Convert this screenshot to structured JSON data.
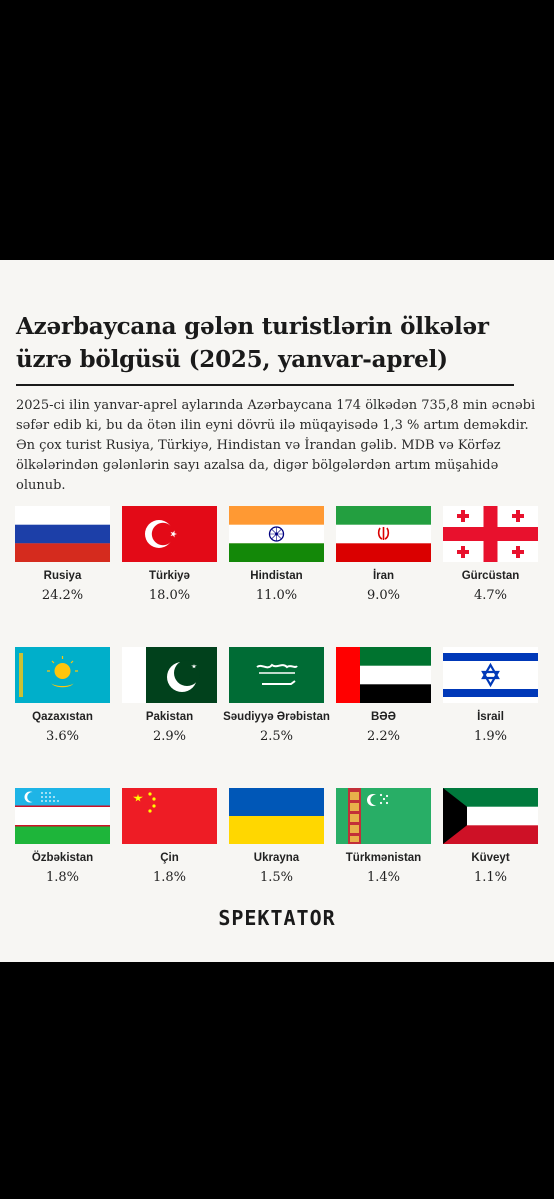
{
  "title": "Azərbaycana gələn turistlərin ölkələr üzrə bölgüsü (2025, yanvar-aprel)",
  "intro": "2025-ci ilin yanvar-aprel aylarında Azərbaycana 174 ölkədən 735,8 min əcnəbi səfər edib ki, bu da ötən ilin eyni dövrü ilə müqayisədə 1,3 % artım deməkdir. Ən çox turist Rusiya, Türkiyə, Hindistan və İrandan gəlib. MDB və Körfəz ölkələrindən gələnlərin sayı azalsa da, digər bölgələrdən artım müşahidə olunub.",
  "brand": "SPEKTATOR",
  "chart_data": {
    "type": "table",
    "title": "Azərbaycana gələn turistlərin ölkələr üzrə bölgüsü (2025, yanvar-aprel)",
    "categories": [
      "Rusiya",
      "Türkiyə",
      "Hindistan",
      "İran",
      "Gürcüstan",
      "Qazaxıstan",
      "Pakistan",
      "Səudiyyə Ərəbistan",
      "BƏƏ",
      "İsrail",
      "Özbəkistan",
      "Çin",
      "Ukrayna",
      "Türkmənistan",
      "Küveyt"
    ],
    "values": [
      24.2,
      18.0,
      11.0,
      9.0,
      4.7,
      3.6,
      2.9,
      2.5,
      2.2,
      1.9,
      1.8,
      1.8,
      1.5,
      1.4,
      1.1
    ],
    "labels": [
      "24.2%",
      "18.0%",
      "11.0%",
      "9.0%",
      "4.7%",
      "3.6%",
      "2.9%",
      "2.5%",
      "2.2%",
      "1.9%",
      "1.8%",
      "1.8%",
      "1.5%",
      "1.4%",
      "1.1%"
    ],
    "flags": [
      "russia-flag-icon",
      "turkey-flag-icon",
      "india-flag-icon",
      "iran-flag-icon",
      "georgia-flag-icon",
      "kazakhstan-flag-icon",
      "pakistan-flag-icon",
      "saudi-arabia-flag-icon",
      "uae-flag-icon",
      "israel-flag-icon",
      "uzbekistan-flag-icon",
      "china-flag-icon",
      "ukraine-flag-icon",
      "turkmenistan-flag-icon",
      "kuwait-flag-icon"
    ]
  }
}
